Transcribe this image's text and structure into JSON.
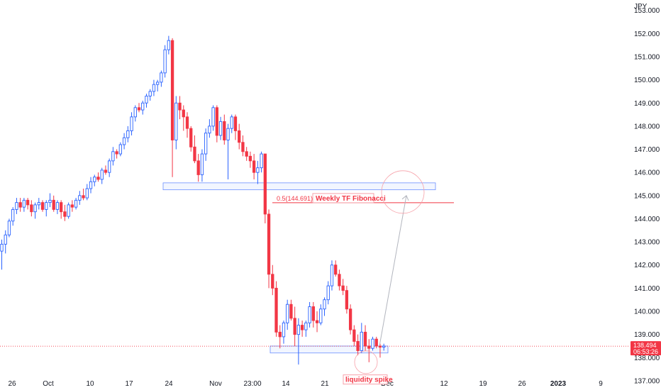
{
  "chart_data": {
    "type": "candlestick",
    "currency_label": "JPY",
    "y_ticks": [
      "153.000",
      "152.000",
      "151.000",
      "150.000",
      "149.000",
      "148.000",
      "147.000",
      "146.000",
      "145.000",
      "144.000",
      "143.000",
      "142.000",
      "141.000",
      "140.000",
      "139.000",
      "138.000",
      "137.000"
    ],
    "ylim": [
      136.6,
      153.45
    ],
    "x_ticks": [
      "26",
      "Oct",
      "10",
      "17",
      "24",
      "Nov",
      "23:00",
      "14",
      "21",
      "Dec",
      "12",
      "19",
      "26",
      "2023",
      "9"
    ],
    "current_price": {
      "label": "138.494",
      "value": 138.494,
      "countdown": "06:53:26"
    },
    "fib_level": {
      "label": "0.5(144.691)",
      "value": 144.691
    },
    "annotations": {
      "fib_box": "Weekly TF Fibonacci",
      "spike": "liquidity spike"
    },
    "zones": [
      {
        "top": 145.55,
        "bottom": 145.25
      },
      {
        "top": 138.5,
        "bottom": 138.2
      }
    ],
    "projection": {
      "from": 138.5,
      "to": 145.0
    },
    "candles": [
      [
        142.6,
        143.1,
        141.8,
        142.9
      ],
      [
        142.9,
        143.5,
        142.5,
        143.3
      ],
      [
        143.3,
        144.0,
        143.2,
        143.9
      ],
      [
        143.9,
        144.5,
        143.7,
        144.4
      ],
      [
        144.4,
        144.9,
        144.2,
        144.7
      ],
      [
        144.7,
        144.9,
        144.3,
        144.5
      ],
      [
        144.5,
        144.9,
        144.3,
        144.8
      ],
      [
        144.8,
        144.9,
        144.4,
        144.6
      ],
      [
        144.6,
        144.8,
        144.1,
        144.3
      ],
      [
        144.3,
        144.7,
        144.0,
        144.6
      ],
      [
        144.6,
        144.9,
        144.4,
        144.7
      ],
      [
        144.7,
        144.8,
        144.3,
        144.4
      ],
      [
        144.4,
        144.8,
        144.1,
        144.7
      ],
      [
        144.7,
        145.1,
        144.5,
        144.8
      ],
      [
        144.8,
        145.0,
        144.3,
        144.4
      ],
      [
        144.4,
        144.8,
        144.2,
        144.7
      ],
      [
        144.7,
        144.8,
        144.0,
        144.3
      ],
      [
        144.3,
        144.6,
        143.9,
        144.1
      ],
      [
        144.1,
        144.7,
        144.0,
        144.6
      ],
      [
        144.6,
        144.8,
        144.3,
        144.5
      ],
      [
        144.5,
        144.9,
        144.4,
        144.8
      ],
      [
        144.8,
        145.2,
        144.6,
        145.0
      ],
      [
        145.0,
        145.3,
        144.8,
        144.9
      ],
      [
        144.9,
        145.5,
        144.8,
        145.3
      ],
      [
        145.3,
        145.8,
        145.1,
        145.6
      ],
      [
        145.6,
        145.9,
        145.4,
        145.8
      ],
      [
        145.8,
        146.0,
        145.6,
        145.7
      ],
      [
        145.7,
        146.2,
        145.5,
        146.1
      ],
      [
        146.1,
        146.3,
        145.9,
        146.0
      ],
      [
        146.0,
        146.6,
        145.8,
        146.5
      ],
      [
        146.5,
        147.1,
        146.3,
        146.9
      ],
      [
        146.9,
        147.0,
        146.6,
        146.8
      ],
      [
        146.8,
        147.3,
        146.7,
        147.2
      ],
      [
        147.2,
        147.7,
        147.0,
        147.5
      ],
      [
        147.5,
        148.0,
        147.3,
        147.8
      ],
      [
        147.8,
        148.6,
        147.6,
        148.4
      ],
      [
        148.4,
        148.9,
        148.2,
        148.8
      ],
      [
        148.8,
        149.0,
        148.6,
        148.7
      ],
      [
        148.7,
        149.1,
        148.5,
        149.0
      ],
      [
        149.0,
        149.4,
        148.8,
        149.3
      ],
      [
        149.3,
        149.6,
        149.1,
        149.5
      ],
      [
        149.5,
        150.0,
        149.3,
        149.8
      ],
      [
        149.8,
        150.0,
        149.5,
        149.9
      ],
      [
        149.9,
        150.4,
        149.7,
        150.3
      ],
      [
        150.3,
        151.5,
        150.1,
        151.3
      ],
      [
        151.3,
        151.9,
        151.1,
        151.7
      ],
      [
        151.7,
        151.8,
        145.8,
        147.4
      ],
      [
        147.4,
        149.3,
        147.0,
        149.0
      ],
      [
        149.0,
        149.3,
        148.3,
        148.7
      ],
      [
        148.7,
        148.9,
        147.8,
        148.4
      ],
      [
        148.4,
        148.6,
        147.5,
        147.9
      ],
      [
        147.9,
        148.0,
        146.9,
        147.1
      ],
      [
        147.1,
        147.6,
        146.4,
        146.5
      ],
      [
        146.5,
        146.8,
        145.6,
        145.9
      ],
      [
        145.9,
        147.0,
        145.6,
        146.8
      ],
      [
        146.8,
        147.9,
        146.5,
        147.7
      ],
      [
        147.7,
        148.3,
        147.5,
        148.0
      ],
      [
        148.0,
        148.9,
        147.8,
        148.8
      ],
      [
        148.8,
        148.9,
        147.3,
        147.6
      ],
      [
        147.6,
        148.4,
        147.4,
        148.2
      ],
      [
        148.2,
        148.5,
        147.2,
        147.4
      ],
      [
        147.4,
        148.1,
        145.7,
        147.9
      ],
      [
        147.9,
        148.5,
        147.7,
        148.4
      ],
      [
        148.4,
        148.5,
        147.4,
        147.8
      ],
      [
        147.8,
        148.1,
        147.0,
        147.3
      ],
      [
        147.3,
        147.6,
        146.7,
        146.9
      ],
      [
        146.9,
        147.1,
        146.5,
        146.7
      ],
      [
        146.7,
        146.9,
        146.2,
        146.5
      ],
      [
        146.5,
        146.8,
        145.7,
        146.0
      ],
      [
        146.0,
        146.5,
        145.5,
        146.2
      ],
      [
        146.2,
        146.9,
        146.0,
        146.8
      ],
      [
        146.8,
        146.8,
        143.8,
        144.2
      ],
      [
        144.2,
        144.4,
        141.0,
        141.6
      ],
      [
        141.6,
        142.0,
        140.7,
        141.0
      ],
      [
        141.0,
        141.3,
        138.9,
        139.1
      ],
      [
        139.1,
        139.4,
        138.4,
        138.9
      ],
      [
        138.9,
        139.6,
        138.6,
        139.5
      ],
      [
        139.5,
        140.5,
        139.2,
        140.3
      ],
      [
        140.3,
        140.5,
        139.6,
        139.7
      ],
      [
        139.7,
        140.2,
        138.5,
        139.0
      ],
      [
        139.0,
        139.7,
        137.7,
        139.4
      ],
      [
        139.4,
        139.6,
        138.9,
        139.2
      ],
      [
        139.2,
        139.6,
        138.9,
        139.5
      ],
      [
        139.5,
        140.4,
        139.3,
        140.2
      ],
      [
        140.2,
        140.4,
        139.3,
        139.6
      ],
      [
        139.6,
        140.0,
        139.1,
        139.5
      ],
      [
        139.5,
        140.3,
        139.4,
        140.1
      ],
      [
        140.1,
        140.6,
        139.8,
        140.5
      ],
      [
        140.5,
        141.3,
        140.3,
        141.1
      ],
      [
        141.1,
        142.2,
        140.9,
        142.0
      ],
      [
        142.0,
        142.2,
        141.5,
        141.6
      ],
      [
        141.6,
        141.8,
        140.9,
        141.1
      ],
      [
        141.1,
        141.4,
        140.7,
        140.9
      ],
      [
        140.9,
        141.1,
        139.9,
        140.1
      ],
      [
        140.1,
        140.3,
        139.0,
        139.2
      ],
      [
        139.2,
        139.4,
        138.5,
        138.7
      ],
      [
        138.7,
        139.0,
        138.1,
        138.3
      ],
      [
        138.3,
        139.5,
        138.2,
        139.1
      ],
      [
        139.1,
        139.4,
        138.3,
        138.5
      ],
      [
        138.5,
        138.8,
        137.8,
        138.4
      ],
      [
        138.4,
        138.9,
        138.3,
        138.8
      ],
      [
        138.8,
        138.9,
        138.4,
        138.5
      ],
      [
        138.5,
        138.6,
        138.0,
        138.45
      ],
      [
        138.45,
        138.6,
        138.3,
        138.5
      ]
    ]
  }
}
